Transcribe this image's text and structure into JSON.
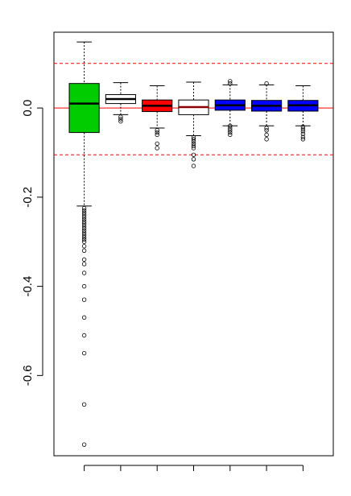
{
  "chart_data": {
    "type": "boxplot",
    "title": "",
    "xlabel": "",
    "ylabel": "",
    "ylim": [
      -0.78,
      0.17
    ],
    "y_ticks": [
      "-0.6",
      "-0.4",
      "-0.2",
      "0.0"
    ],
    "y_tick_values": [
      -0.6,
      -0.4,
      -0.2,
      0.0
    ],
    "reference_lines": [
      {
        "value": 0.0,
        "color": "#ff0000",
        "style": "solid"
      },
      {
        "value": 0.1,
        "color": "#ff0000",
        "style": "dashed"
      },
      {
        "value": -0.105,
        "color": "#ff0000",
        "style": "dashed"
      }
    ],
    "boxes": [
      {
        "fill": "#00cc00",
        "whisker_low": -0.22,
        "q1": -0.055,
        "median": 0.01,
        "q3": 0.055,
        "whisker_high": 0.148,
        "outliers": [
          -0.225,
          -0.23,
          -0.235,
          -0.24,
          -0.245,
          -0.25,
          -0.255,
          -0.26,
          -0.265,
          -0.27,
          -0.275,
          -0.28,
          -0.285,
          -0.29,
          -0.295,
          -0.3,
          -0.31,
          -0.32,
          -0.34,
          -0.35,
          -0.37,
          -0.4,
          -0.43,
          -0.47,
          -0.51,
          -0.55,
          -0.665,
          -0.755
        ]
      },
      {
        "fill": "#ffffff",
        "whisker_low": -0.015,
        "q1": 0.01,
        "median": 0.02,
        "q3": 0.03,
        "whisker_high": 0.057,
        "outliers": [
          -0.02,
          -0.025,
          -0.03
        ]
      },
      {
        "fill": "#ff0000",
        "whisker_low": -0.045,
        "q1": -0.008,
        "median": 0.005,
        "q3": 0.018,
        "whisker_high": 0.05,
        "outliers": [
          -0.05,
          -0.055,
          -0.06,
          -0.08,
          -0.09
        ]
      },
      {
        "fill": "#ffffff",
        "whisker_low": -0.062,
        "q1": -0.015,
        "median": 0.002,
        "q3": 0.018,
        "whisker_high": 0.058,
        "outliers": [
          -0.066,
          -0.07,
          -0.075,
          -0.08,
          -0.085,
          -0.09,
          -0.105,
          -0.115,
          -0.13
        ]
      },
      {
        "fill": "#0000ff",
        "whisker_low": -0.04,
        "q1": -0.005,
        "median": 0.006,
        "q3": 0.018,
        "whisker_high": 0.052,
        "outliers": [
          -0.04,
          -0.045,
          -0.05,
          -0.055,
          -0.06,
          0.055,
          0.06
        ]
      },
      {
        "fill": "#0000ff",
        "whisker_low": -0.04,
        "q1": -0.007,
        "median": 0.005,
        "q3": 0.017,
        "whisker_high": 0.052,
        "outliers": [
          -0.045,
          -0.05,
          -0.06,
          -0.07,
          0.055
        ]
      },
      {
        "fill": "#0000ff",
        "whisker_low": -0.04,
        "q1": -0.007,
        "median": 0.006,
        "q3": 0.017,
        "whisker_high": 0.05,
        "outliers": [
          -0.042,
          -0.047,
          -0.052,
          -0.058,
          -0.065,
          -0.07
        ]
      }
    ]
  }
}
